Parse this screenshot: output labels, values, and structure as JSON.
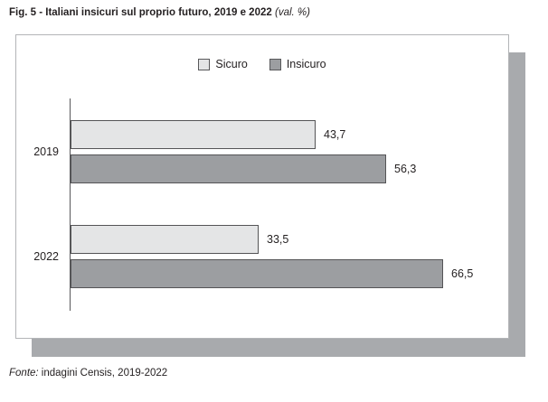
{
  "title": {
    "main": "Fig. 5 - Italiani insicuri sul proprio futuro, 2019 e 2022",
    "unit": "(val. %)"
  },
  "chart_data": {
    "type": "bar",
    "orientation": "horizontal",
    "title": "Fig. 5 - Italiani insicuri sul proprio futuro, 2019 e 2022 (val. %)",
    "categories": [
      "2019",
      "2022"
    ],
    "series": [
      {
        "name": "Sicuro",
        "color": "#e4e5e6",
        "values": [
          43.7,
          33.5
        ],
        "labels": [
          "43,7",
          "33,5"
        ]
      },
      {
        "name": "Insicuro",
        "color": "#9c9ea1",
        "values": [
          56.3,
          66.5
        ],
        "labels": [
          "56,3",
          "66,5"
        ]
      }
    ],
    "xlabel": "",
    "ylabel": "",
    "xlim": [
      0,
      78.6
    ],
    "grid": false,
    "legend_position": "top-center",
    "bar_border_color": "#545456",
    "value_label_format": "comma-decimal"
  },
  "legend": {
    "items": [
      {
        "label": "Sicuro",
        "color": "#e4e5e6"
      },
      {
        "label": "Insicuro",
        "color": "#9c9ea1"
      }
    ]
  },
  "source": {
    "prefix": "Fonte:",
    "text": " indagini Censis, 2019-2022"
  }
}
